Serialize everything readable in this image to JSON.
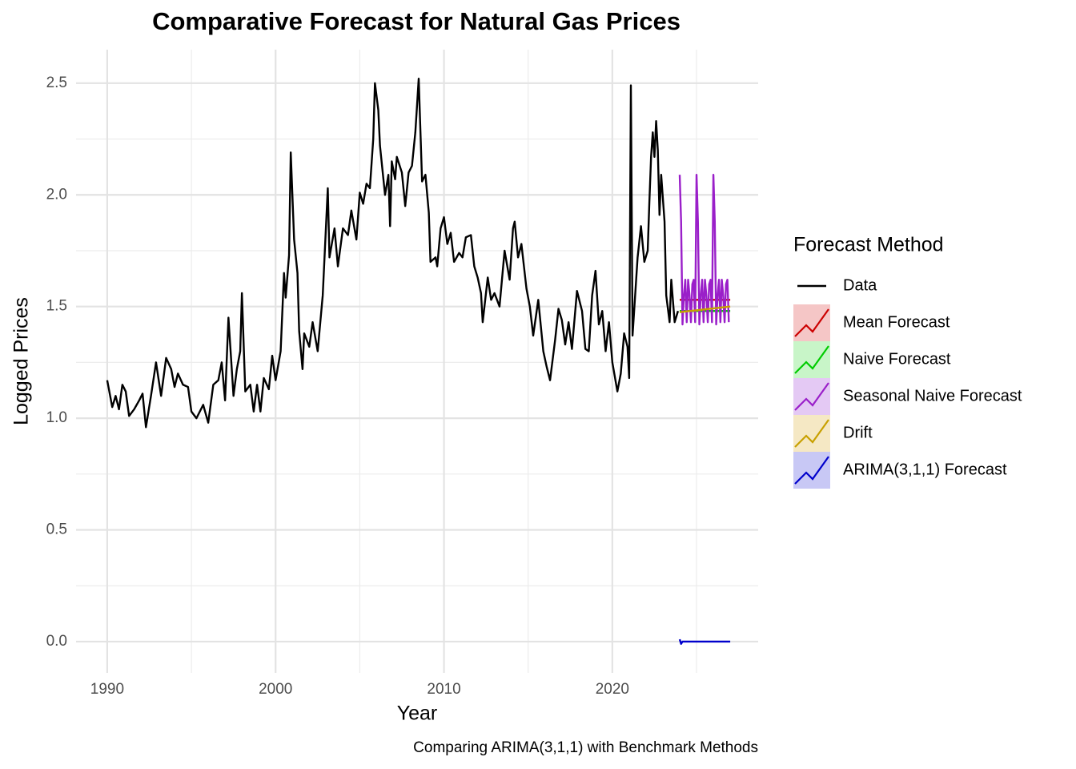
{
  "chart_data": {
    "type": "line",
    "title": "Comparative Forecast for Natural Gas Prices",
    "caption": "Comparing ARIMA(3,1,1) with Benchmark Methods",
    "x_label": "Year",
    "y_label": "Logged Prices",
    "legend_title": "Forecast Method",
    "legend_position": "right",
    "grid": true,
    "xlim": [
      1988.15,
      2028.66
    ],
    "ylim": [
      -0.14,
      2.65
    ],
    "xticks": [
      1990,
      2000,
      2010,
      2020
    ],
    "yticks": [
      {
        "value": 0,
        "label": "0.0"
      },
      0.5,
      {
        "value": 1,
        "label": "1.0"
      },
      1.5,
      {
        "value": 2,
        "label": "2.0"
      },
      2.5
    ],
    "series": [
      {
        "name": "Data",
        "color": "#000000",
        "x": [
          1990.0,
          1990.3,
          1990.5,
          1990.7,
          1990.9,
          1991.1,
          1991.3,
          1991.6,
          1991.9,
          1992.1,
          1992.3,
          1992.6,
          1992.9,
          1993.2,
          1993.5,
          1993.8,
          1994.0,
          1994.2,
          1994.5,
          1994.8,
          1995.0,
          1995.3,
          1995.7,
          1996.0,
          1996.3,
          1996.6,
          1996.8,
          1997.0,
          1997.2,
          1997.5,
          1997.7,
          1997.9,
          1998.0,
          1998.2,
          1998.5,
          1998.7,
          1998.9,
          1999.1,
          1999.3,
          1999.6,
          1999.8,
          2000.0,
          2000.3,
          2000.5,
          2000.6,
          2000.8,
          2000.9,
          2001.1,
          2001.3,
          2001.4,
          2001.6,
          2001.7,
          2002.0,
          2002.2,
          2002.5,
          2002.8,
          2003.1,
          2003.2,
          2003.5,
          2003.7,
          2004.0,
          2004.3,
          2004.5,
          2004.8,
          2005.0,
          2005.2,
          2005.4,
          2005.6,
          2005.8,
          2005.9,
          2006.1,
          2006.2,
          2006.5,
          2006.7,
          2006.8,
          2006.9,
          2007.1,
          2007.2,
          2007.5,
          2007.7,
          2007.9,
          2008.1,
          2008.3,
          2008.5,
          2008.7,
          2008.9,
          2009.1,
          2009.2,
          2009.5,
          2009.6,
          2009.8,
          2010.0,
          2010.2,
          2010.4,
          2010.6,
          2010.9,
          2011.1,
          2011.3,
          2011.6,
          2011.8,
          2012.0,
          2012.2,
          2012.3,
          2012.6,
          2012.8,
          2013.0,
          2013.3,
          2013.6,
          2013.9,
          2014.1,
          2014.2,
          2014.4,
          2014.6,
          2014.9,
          2015.1,
          2015.3,
          2015.6,
          2015.9,
          2016.1,
          2016.3,
          2016.6,
          2016.8,
          2017.0,
          2017.2,
          2017.4,
          2017.6,
          2017.9,
          2018.2,
          2018.4,
          2018.6,
          2018.8,
          2019.0,
          2019.2,
          2019.4,
          2019.6,
          2019.8,
          2020.0,
          2020.3,
          2020.5,
          2020.7,
          2020.9,
          2021.0,
          2021.1,
          2021.2,
          2021.5,
          2021.7,
          2021.9,
          2022.1,
          2022.2,
          2022.3,
          2022.4,
          2022.5,
          2022.6,
          2022.7,
          2022.8,
          2022.9,
          2023.1,
          2023.2,
          2023.4,
          2023.5,
          2023.7,
          2023.9
        ],
        "values": [
          1.17,
          1.05,
          1.1,
          1.04,
          1.15,
          1.12,
          1.01,
          1.04,
          1.08,
          1.11,
          0.96,
          1.1,
          1.25,
          1.1,
          1.27,
          1.22,
          1.14,
          1.2,
          1.15,
          1.14,
          1.03,
          1.0,
          1.06,
          0.98,
          1.15,
          1.17,
          1.25,
          1.08,
          1.45,
          1.1,
          1.22,
          1.3,
          1.56,
          1.12,
          1.15,
          1.03,
          1.15,
          1.03,
          1.18,
          1.13,
          1.28,
          1.17,
          1.3,
          1.65,
          1.54,
          1.73,
          2.19,
          1.8,
          1.65,
          1.39,
          1.22,
          1.38,
          1.32,
          1.43,
          1.3,
          1.55,
          2.03,
          1.72,
          1.85,
          1.68,
          1.85,
          1.82,
          1.93,
          1.8,
          2.01,
          1.96,
          2.05,
          2.03,
          2.25,
          2.5,
          2.38,
          2.22,
          2.0,
          2.09,
          1.86,
          2.15,
          2.07,
          2.17,
          2.1,
          1.95,
          2.1,
          2.13,
          2.28,
          2.52,
          2.06,
          2.09,
          1.92,
          1.7,
          1.72,
          1.68,
          1.85,
          1.9,
          1.78,
          1.83,
          1.7,
          1.74,
          1.72,
          1.81,
          1.82,
          1.68,
          1.63,
          1.56,
          1.43,
          1.63,
          1.53,
          1.56,
          1.5,
          1.75,
          1.62,
          1.85,
          1.88,
          1.72,
          1.78,
          1.58,
          1.5,
          1.37,
          1.53,
          1.3,
          1.23,
          1.17,
          1.35,
          1.49,
          1.44,
          1.33,
          1.43,
          1.31,
          1.57,
          1.48,
          1.31,
          1.3,
          1.55,
          1.66,
          1.42,
          1.48,
          1.3,
          1.43,
          1.25,
          1.12,
          1.2,
          1.38,
          1.32,
          1.18,
          2.49,
          1.37,
          1.72,
          1.86,
          1.7,
          1.75,
          1.97,
          2.17,
          2.28,
          2.17,
          2.33,
          2.2,
          1.91,
          2.09,
          1.88,
          1.55,
          1.43,
          1.62,
          1.43,
          1.48
        ]
      },
      {
        "name": "Mean Forecast",
        "color": "#cc0000",
        "legend_fill": "#f5c6c6",
        "x": [
          2024.0,
          2027.0
        ],
        "values": [
          1.53,
          1.53
        ]
      },
      {
        "name": "Naive Forecast",
        "color": "#00cc00",
        "legend_fill": "#c8f5c8",
        "x": [
          2024.0,
          2027.0
        ],
        "values": [
          1.48,
          1.48
        ]
      },
      {
        "name": "Seasonal Naive Forecast",
        "color": "#9a1fc9",
        "legend_fill": "#e4c9f4",
        "x": [
          2024.0,
          2024.083,
          2024.167,
          2024.25,
          2024.333,
          2024.417,
          2024.5,
          2024.583,
          2024.667,
          2024.75,
          2024.833,
          2024.917,
          2025.0,
          2025.083,
          2025.167,
          2025.25,
          2025.333,
          2025.417,
          2025.5,
          2025.583,
          2025.667,
          2025.75,
          2025.833,
          2025.917,
          2026.0,
          2026.083,
          2026.167,
          2026.25,
          2026.333,
          2026.417,
          2026.5,
          2026.583,
          2026.667,
          2026.75,
          2026.833,
          2026.917
        ],
        "values": [
          2.09,
          1.88,
          1.42,
          1.55,
          1.62,
          1.43,
          1.62,
          1.55,
          1.43,
          1.6,
          1.62,
          1.43,
          2.09,
          1.88,
          1.42,
          1.55,
          1.62,
          1.43,
          1.62,
          1.55,
          1.43,
          1.6,
          1.62,
          1.43,
          2.09,
          1.88,
          1.42,
          1.55,
          1.62,
          1.43,
          1.62,
          1.55,
          1.43,
          1.6,
          1.62,
          1.43
        ]
      },
      {
        "name": "Drift",
        "color": "#c8a000",
        "legend_fill": "#f5e8c4",
        "x": [
          2024.0,
          2027.0
        ],
        "values": [
          1.475,
          1.5
        ]
      },
      {
        "name": "ARIMA(3,1,1) Forecast",
        "color": "#0000cc",
        "legend_fill": "#c8c8f5",
        "x": [
          2024.0,
          2024.083,
          2024.167,
          2024.25,
          2027.0
        ],
        "values": [
          0.01,
          -0.01,
          0.0,
          0.0,
          0.0
        ]
      }
    ]
  }
}
